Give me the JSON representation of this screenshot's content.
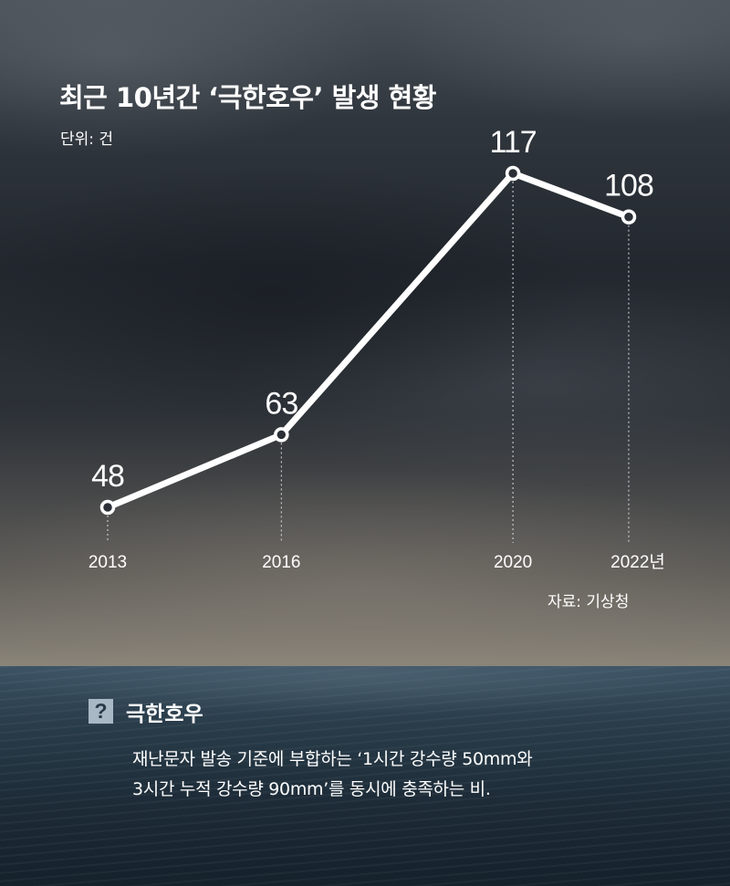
{
  "title": "최근 10년간 ‘극한호우’ 발생 현황",
  "unit": "단위: 건",
  "source": "자료: 기상청",
  "colors": {
    "line": "#ffffff",
    "marker_fill": "#2b3037",
    "text": "#ffffff",
    "icon_bg": "#a8b8c4"
  },
  "chart_data": {
    "type": "line",
    "categories": [
      "2013",
      "2016",
      "2020",
      "2022년"
    ],
    "values": [
      48,
      63,
      117,
      108
    ],
    "title": "최근 10년간 ‘극한호우’ 발생 현황",
    "ylabel": "단위: 건",
    "grid": false,
    "data_labels": true
  },
  "definition": {
    "icon": "question-icon",
    "icon_glyph": "?",
    "term": "극한호우",
    "line1": "재난문자 발송 기준에 부합하는 ‘1시간 강수량 50mm와",
    "line2": "3시간 누적 강수량 90mm’를 동시에 충족하는 비."
  }
}
